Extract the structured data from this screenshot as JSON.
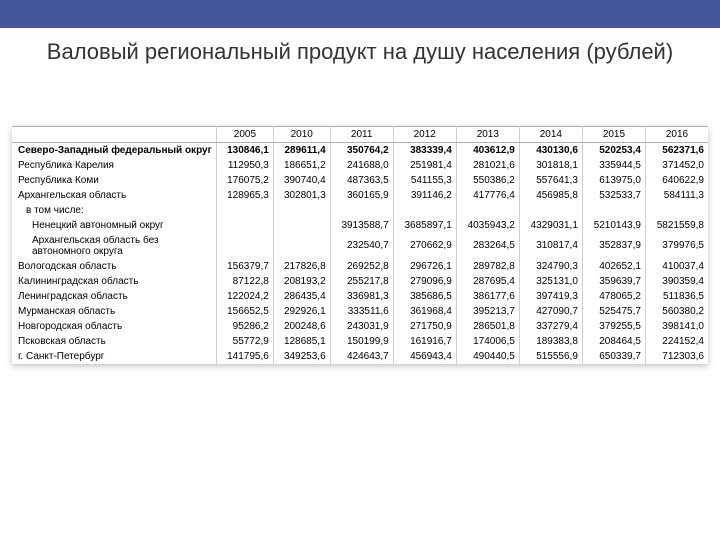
{
  "topbar_color": "#44559e",
  "title": "Валовый региональный продукт на душу населения (рублей)",
  "table": {
    "type": "table",
    "columns": [
      "",
      "2005",
      "2010",
      "2011",
      "2012",
      "2013",
      "2014",
      "2015",
      "2016"
    ],
    "rows": [
      {
        "label": "Северо-Западный федеральный округ",
        "bold": true,
        "cells": [
          "130846,1",
          "289611,4",
          "350764,2",
          "383339,4",
          "403612,9",
          "430130,6",
          "520253,4",
          "562371,6"
        ]
      },
      {
        "label": "Республика Карелия",
        "cells": [
          "112950,3",
          "186651,2",
          "241688,0",
          "251981,4",
          "281021,6",
          "301818,1",
          "335944,5",
          "371452,0"
        ]
      },
      {
        "label": "Республика Коми",
        "cells": [
          "176075,2",
          "390740,4",
          "487363,5",
          "541155,3",
          "550386,2",
          "557641,3",
          "613975,0",
          "640622,9"
        ]
      },
      {
        "label": "Архангельская область",
        "cells": [
          "128965,3",
          "302801,3",
          "360165,9",
          "391146,2",
          "417776,4",
          "456985,8",
          "532533,7",
          "584111,3"
        ]
      },
      {
        "label": "в том числе:",
        "indent": "indent2",
        "cells": [
          "",
          "",
          "",
          "",
          "",
          "",
          "",
          ""
        ]
      },
      {
        "label": "Ненецкий автономный округ",
        "indent": "indent",
        "cells": [
          "",
          "",
          "3913588,7",
          "3685897,1",
          "4035943,2",
          "4329031,1",
          "5210143,9",
          "5821559,8"
        ]
      },
      {
        "label": "Архангельская область без автономного округа",
        "indent": "indent",
        "cells": [
          "",
          "",
          "232540,7",
          "270662,9",
          "283264,5",
          "310817,4",
          "352837,9",
          "379976,5"
        ]
      },
      {
        "label": "Вологодская область",
        "cells": [
          "156379,7",
          "217826,8",
          "269252,8",
          "296726,1",
          "289782,8",
          "324790,3",
          "402652,1",
          "410037,4"
        ]
      },
      {
        "label": "Калининградская область",
        "cells": [
          "87122,8",
          "208193,2",
          "255217,8",
          "279096,9",
          "287695,4",
          "325131,0",
          "359639,7",
          "390359,4"
        ]
      },
      {
        "label": "Ленинградская область",
        "cells": [
          "122024,2",
          "286435,4",
          "336981,3",
          "385686,5",
          "386177,6",
          "397419,3",
          "478065,2",
          "511836,5"
        ]
      },
      {
        "label": "Мурманская область",
        "cells": [
          "156652,5",
          "292926,1",
          "333511,6",
          "361968,4",
          "395213,7",
          "427090,7",
          "525475,7",
          "560380,2"
        ]
      },
      {
        "label": "Новгородская область",
        "cells": [
          "95286,2",
          "200248,6",
          "243031,9",
          "271750,9",
          "286501,8",
          "337279,4",
          "379255,5",
          "398141,0"
        ]
      },
      {
        "label": "Псковская область",
        "cells": [
          "55772,9",
          "128685,1",
          "150199,9",
          "161916,7",
          "174006,5",
          "189383,8",
          "208464,5",
          "224152,4"
        ]
      },
      {
        "label": "г. Санкт-Петербург",
        "cells": [
          "141795,6",
          "349253,6",
          "424643,7",
          "456943,4",
          "490440,5",
          "515556,9",
          "650339,7",
          "712303,6"
        ]
      }
    ],
    "header_border_color": "#b0b0b0",
    "cell_border_color": "#d0d0d0",
    "font_size": 10,
    "text_color": "#000000"
  }
}
